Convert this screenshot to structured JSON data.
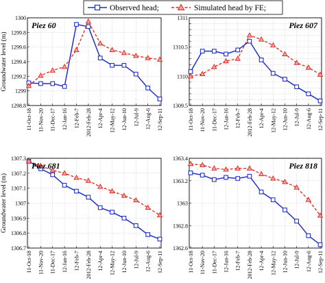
{
  "legend": {
    "observed_label": "Observed head;",
    "simulated_label": "Simulated head by FE;"
  },
  "colors": {
    "observed": "#1f2fcc",
    "simulated": "#e0241b"
  },
  "chart_data": [
    {
      "type": "line",
      "title": "Piez 60",
      "ylabel": "Groundwater level (m)",
      "xlabel": "",
      "categories": [
        "11-Oct-18",
        "11-Nov-20",
        "11-Dec-17",
        "12-Jan-16",
        "12-Feb-7",
        "2012-Feb-28",
        "12-Apr-4",
        "12-May-12",
        "12-Jun-10",
        "12-Jul-9",
        "12-Aug-6",
        "12-Sep-11"
      ],
      "ylim": [
        1298.8,
        1300
      ],
      "yticks": [
        "1298.8",
        "1299",
        "1299.2",
        "1299.4",
        "1299.6",
        "1299.8",
        "1300"
      ],
      "grid": true,
      "series": [
        {
          "name": "Observed head;",
          "values": [
            1299.11,
            1299.1,
            1299.1,
            1299.06,
            1299.91,
            1299.88,
            1299.45,
            1299.35,
            1299.35,
            1299.23,
            1299.04,
            1298.89
          ]
        },
        {
          "name": "Simulated head by FE;",
          "values": [
            1299.07,
            1299.21,
            1299.28,
            1299.33,
            1299.56,
            1299.95,
            1299.65,
            1299.56,
            1299.52,
            1299.48,
            1299.45,
            1299.43
          ]
        }
      ]
    },
    {
      "type": "line",
      "title": "Piez 607",
      "ylabel": "",
      "xlabel": "",
      "categories": [
        "11-Oct-18",
        "11-Nov-20",
        "11-Dec-17",
        "12-Jan-16",
        "12-Feb-7",
        "2012-Feb-28",
        "12-Apr-4",
        "12-May-12",
        "12-Jun-10",
        "12-Jul-9",
        "12-Aug-6",
        "12-Sep-11"
      ],
      "ylim": [
        1309.5,
        1311
      ],
      "yticks": [
        "1309.5",
        "1309.6",
        "1309.7",
        "1309.8",
        "1309.9",
        "1310",
        "1310.1",
        "1310.2",
        "1310.3",
        "1310.4",
        "1310.5",
        "1310.6",
        "1310.7",
        "1310.8",
        "1310.9",
        "1311"
      ],
      "ytick_labels_shown": [
        "1309.5",
        "1310",
        "1310.5",
        "1311"
      ],
      "grid": true,
      "series": [
        {
          "name": "Observed head;",
          "values": [
            1310.08,
            1310.43,
            1310.43,
            1310.38,
            1310.45,
            1310.6,
            1310.28,
            1310.05,
            1309.95,
            1309.82,
            1309.7,
            1309.58
          ]
        },
        {
          "name": "Simulated head by FE;",
          "values": [
            1310.0,
            1310.04,
            1310.16,
            1310.26,
            1310.3,
            1310.7,
            1310.63,
            1310.53,
            1310.38,
            1310.23,
            1310.15,
            1310.03
          ]
        }
      ]
    },
    {
      "type": "line",
      "title": "Piez 681",
      "ylabel": "Groundwater level (m)",
      "xlabel": "",
      "categories": [
        "11-Oct-18",
        "11-Nov-20",
        "11-Dec-17",
        "12-Jan-16",
        "12-Feb-7",
        "2012-Feb-28",
        "12-Apr-4",
        "12-May-12",
        "12-Jun-10",
        "12-Jul-9",
        "12-Aug-6",
        "12-Sep-11"
      ],
      "ylim": [
        1306.7,
        1307.3
      ],
      "yticks": [
        "1306.7",
        "1306.8",
        "1306.9",
        "1307",
        "1307.1",
        "1307.2",
        "1307.3"
      ],
      "grid": true,
      "series": [
        {
          "name": "Observed head;",
          "values": [
            1307.28,
            1307.23,
            1307.19,
            1307.12,
            1307.08,
            1307.04,
            1306.97,
            1306.94,
            1306.9,
            1306.85,
            1306.79,
            1306.76
          ]
        },
        {
          "name": "Simulated head by FE;",
          "values": [
            1307.28,
            1307.25,
            1307.22,
            1307.2,
            1307.17,
            1307.15,
            1307.11,
            1307.08,
            1307.05,
            1307.02,
            1306.97,
            1306.92
          ]
        }
      ]
    },
    {
      "type": "line",
      "title": "Piez 818",
      "ylabel": "",
      "xlabel": "",
      "categories": [
        "11-Oct-18",
        "11-Nov-20",
        "11-Dec-17",
        "12-Jan-16",
        "12-Feb-7",
        "2012-Feb-28",
        "12-Apr-4",
        "12-May-12",
        "12-Jun-10",
        "12-Jul-9",
        "12-Aug-6",
        "12-Sep-11"
      ],
      "ylim": [
        1362.6,
        1363.4
      ],
      "yticks": [
        "1362.6",
        "1362.8",
        "1363",
        "1363.2",
        "1363.4"
      ],
      "grid": true,
      "series": [
        {
          "name": "Observed head;",
          "values": [
            1363.27,
            1363.25,
            1363.21,
            1363.23,
            1363.22,
            1363.24,
            1363.1,
            1363.03,
            1362.94,
            1362.84,
            1362.71,
            1362.63
          ]
        },
        {
          "name": "Simulated head by FE;",
          "values": [
            1363.35,
            1363.34,
            1363.31,
            1363.3,
            1363.31,
            1363.31,
            1363.26,
            1363.22,
            1363.19,
            1363.14,
            1363.03,
            1362.89
          ]
        }
      ]
    }
  ]
}
